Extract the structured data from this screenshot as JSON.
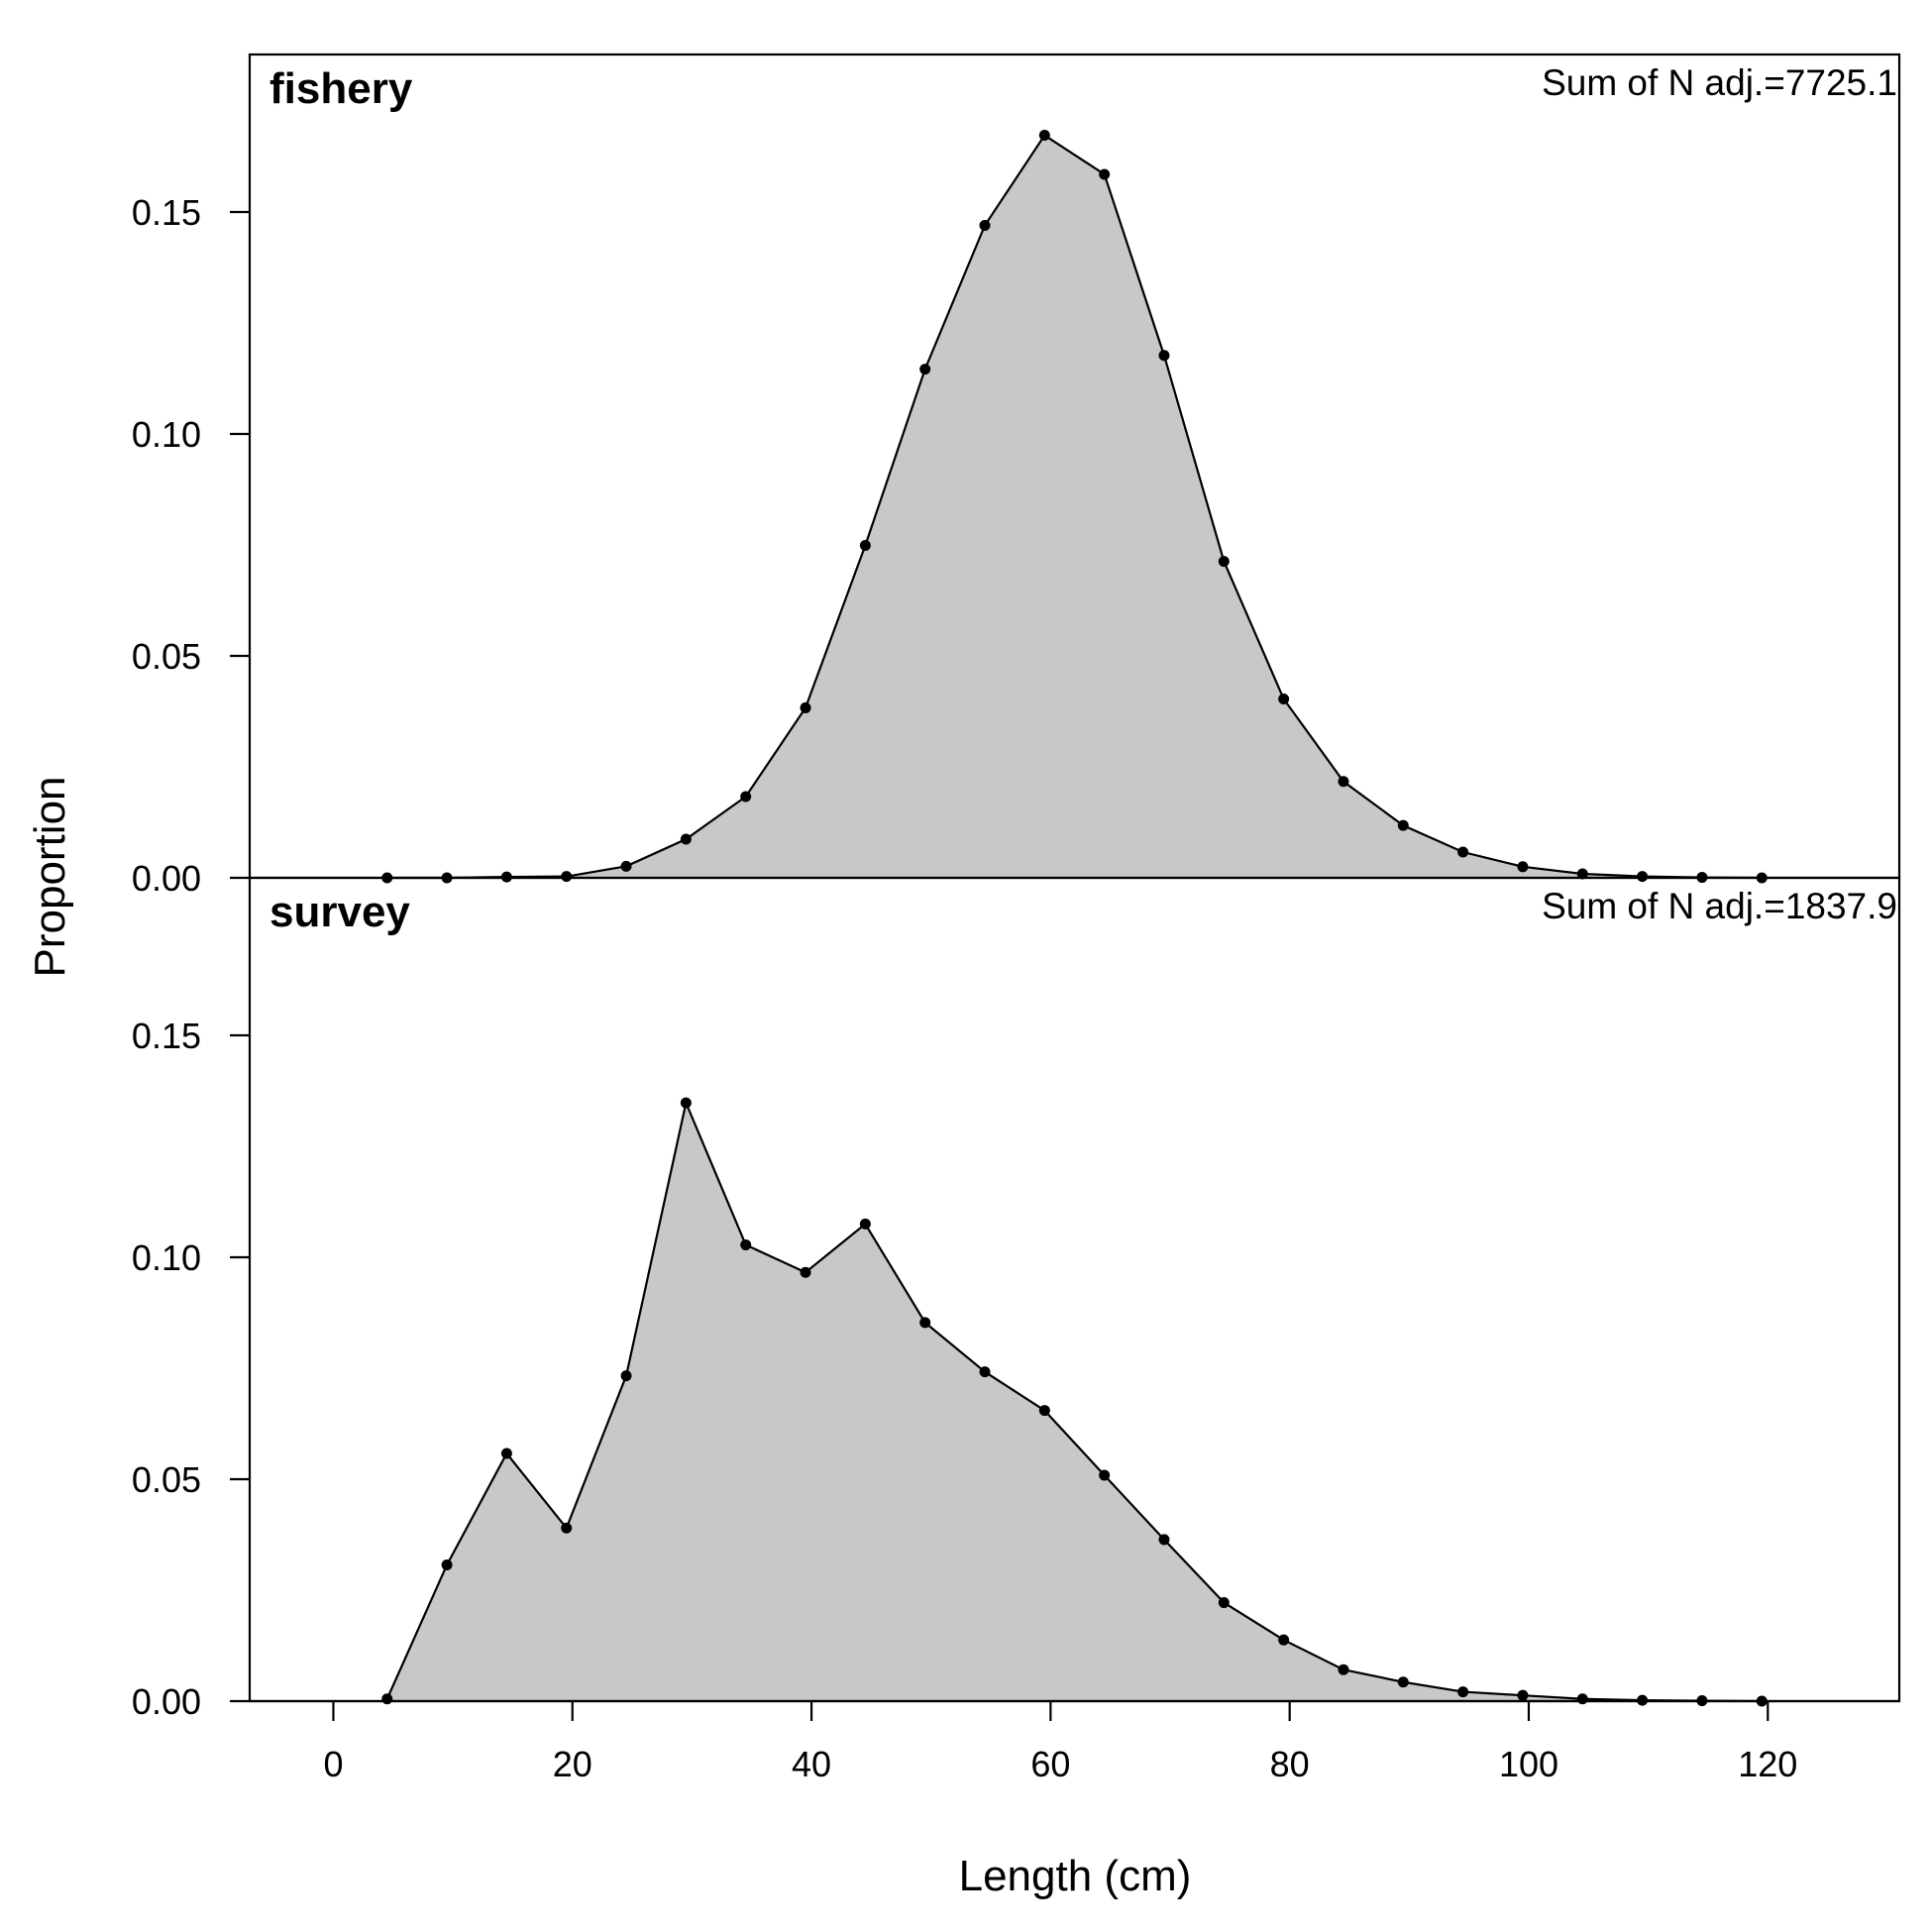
{
  "chart_data": {
    "type": "area",
    "xlabel": "Length (cm)",
    "ylabel": "Proportion",
    "xlim": [
      -7,
      131
    ],
    "ylim": [
      0,
      0.1855
    ],
    "x_ticks": [
      0,
      20,
      40,
      60,
      80,
      100,
      120
    ],
    "x_tick_labels": [
      "0",
      "20",
      "40",
      "60",
      "80",
      "100",
      "120"
    ],
    "y_ticks": [
      0,
      0.05,
      0.1,
      0.15
    ],
    "y_tick_labels": [
      "0.00",
      "0.05",
      "0.10",
      "0.15"
    ],
    "fill_color": "#c8c8c8",
    "line_color": "#000000",
    "x": [
      4.5,
      9.5,
      14.5,
      19.5,
      24.5,
      29.5,
      34.5,
      39.5,
      44.5,
      49.5,
      54.5,
      59.5,
      64.5,
      69.5,
      74.5,
      79.5,
      84.5,
      89.5,
      94.5,
      99.5,
      104.5,
      109.5,
      114.5,
      119.5
    ],
    "panels": [
      {
        "name": "fishery",
        "sum_label": "Sum of N adj.=7725.1",
        "values": [
          0.0,
          0.0,
          0.0002,
          0.0003,
          0.0026,
          0.0087,
          0.0183,
          0.0383,
          0.0749,
          0.1146,
          0.147,
          0.1673,
          0.1585,
          0.1177,
          0.0713,
          0.0403,
          0.0217,
          0.0118,
          0.0058,
          0.0025,
          0.0009,
          0.0003,
          0.0001,
          0.0
        ]
      },
      {
        "name": "survey",
        "sum_label": "Sum of N adj.=1837.9",
        "values": [
          0.0005,
          0.0307,
          0.0558,
          0.039,
          0.0733,
          0.1348,
          0.1028,
          0.0966,
          0.1075,
          0.0853,
          0.0742,
          0.0655,
          0.0509,
          0.0364,
          0.0222,
          0.0138,
          0.0071,
          0.0043,
          0.0021,
          0.0013,
          0.0005,
          0.0002,
          0.0001,
          0.0
        ]
      }
    ]
  }
}
